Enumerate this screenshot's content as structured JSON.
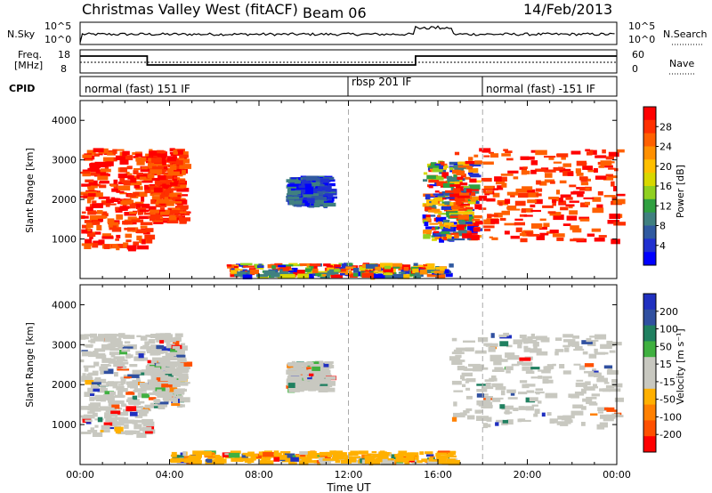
{
  "header": {
    "station": "Christmas Valley West (fitACF)",
    "beam": "Beam 06",
    "date": "14/Feb/2013"
  },
  "top_panels": {
    "nsky_label": "N.Sky",
    "nsky_ticks": [
      "10^5",
      "10^0"
    ],
    "nsearch_label": "N.Search",
    "nsearch_ticks": [
      "10^5",
      "10^0"
    ],
    "freq_label_1": "Freq.",
    "freq_label_2": "[MHz]",
    "freq_ticks": [
      "18",
      "8"
    ],
    "nave_label": "Nave",
    "nave_ticks": [
      "60",
      "0"
    ],
    "cpid_label": "CPID",
    "cpid_segments": [
      {
        "label": "normal (fast) 151 IF",
        "start": 0,
        "end": 12
      },
      {
        "label": "rbsp 201 IF",
        "start": 12,
        "end": 18
      },
      {
        "label": "normal (fast) -151 IF",
        "start": 18,
        "end": 24
      }
    ]
  },
  "chart_data": [
    {
      "type": "heatmap",
      "name_panel": "power",
      "ylabel": "Slant Range [km]",
      "xlabel": "Time UT",
      "xlim": [
        0,
        24
      ],
      "ylim": [
        0,
        4500
      ],
      "y_ticks": [
        "1000",
        "2000",
        "3000",
        "4000"
      ],
      "x_ticks": [
        "00:00",
        "04:00",
        "08:00",
        "12:00",
        "16:00",
        "20:00",
        "00:00"
      ],
      "colorbar": {
        "label": "Power [dB]",
        "ticks": [
          "28",
          "24",
          "20",
          "16",
          "12",
          "8",
          "4"
        ],
        "colors": [
          "#ff0000",
          "#ff3000",
          "#ff6000",
          "#ff9000",
          "#ffc000",
          "#d8d800",
          "#90d020",
          "#30a040",
          "#408080",
          "#305aa0",
          "#2030d0",
          "#0000ff"
        ]
      },
      "regions": [
        {
          "t0": 0,
          "t1": 3.0,
          "r0": 800,
          "r1": 3300,
          "level": "high"
        },
        {
          "t0": 3.0,
          "t1": 4.5,
          "r0": 1500,
          "r1": 3300,
          "level": "high"
        },
        {
          "t0": 9.2,
          "t1": 11.0,
          "r0": 1900,
          "r1": 2600,
          "level": "low"
        },
        {
          "t0": 6.5,
          "t1": 16.5,
          "r0": 100,
          "r1": 400,
          "level": "mixed"
        },
        {
          "t0": 15.3,
          "t1": 17.5,
          "r0": 1000,
          "r1": 3000,
          "level": "mixed"
        },
        {
          "t0": 16.5,
          "t1": 24,
          "r0": 1000,
          "r1": 3300,
          "level": "high"
        }
      ]
    },
    {
      "type": "heatmap",
      "name_panel": "velocity",
      "ylabel": "Slant Range [km]",
      "xlabel": "Time UT",
      "xlim": [
        0,
        24
      ],
      "ylim": [
        0,
        4500
      ],
      "y_ticks": [
        "1000",
        "2000",
        "3000",
        "4000"
      ],
      "x_ticks": [
        "00:00",
        "04:00",
        "08:00",
        "12:00",
        "16:00",
        "20:00",
        "00:00"
      ],
      "colorbar": {
        "label": "Velocity [m s⁻¹]",
        "ticks": [
          "200",
          "100",
          "50",
          "15",
          "-15",
          "-50",
          "-100",
          "-200"
        ],
        "colors": [
          "#2030c0",
          "#3050a0",
          "#208060",
          "#40b040",
          "#c8c8c0",
          "#c8c8c0",
          "#ffb000",
          "#ff8000",
          "#ff5000",
          "#ff0000"
        ]
      },
      "regions": [
        {
          "t0": 0,
          "t1": 3.0,
          "r0": 800,
          "r1": 3300,
          "level": "ground"
        },
        {
          "t0": 3.0,
          "t1": 4.5,
          "r0": 1500,
          "r1": 3300,
          "level": "ground"
        },
        {
          "t0": 9.2,
          "t1": 11.0,
          "r0": 1900,
          "r1": 2600,
          "level": "ground"
        },
        {
          "t0": 4.0,
          "t1": 16.5,
          "r0": 100,
          "r1": 350,
          "level": "negative"
        },
        {
          "t0": 16.5,
          "t1": 24,
          "r0": 1000,
          "r1": 3300,
          "level": "ground"
        }
      ]
    }
  ]
}
